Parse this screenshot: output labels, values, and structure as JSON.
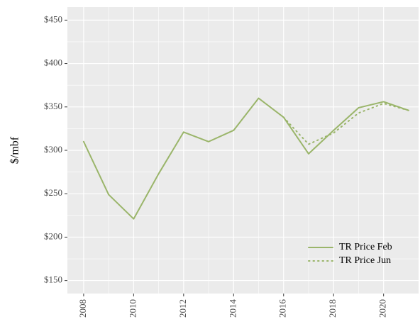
{
  "chart_data": {
    "type": "line",
    "y_label": "$/mbf",
    "x": [
      2008,
      2009,
      2010,
      2011,
      2012,
      2013,
      2014,
      2015,
      2016,
      2017,
      2018,
      2019,
      2020,
      2021
    ],
    "series": [
      {
        "name": "TR Price Feb",
        "color": "#9ab56a",
        "dash": "solid",
        "values": [
          310,
          249,
          221,
          273,
          321,
          310,
          323,
          360,
          338,
          296,
          323,
          349,
          356,
          346
        ]
      },
      {
        "name": "TR Price Jun",
        "color": "#9ab56a",
        "dash": "dotted",
        "values": [
          null,
          null,
          null,
          null,
          null,
          null,
          null,
          null,
          338,
          307,
          320,
          343,
          354,
          346
        ]
      }
    ],
    "xlim": [
      2007.35,
      2021.4
    ],
    "xticks": [
      2008,
      2010,
      2012,
      2014,
      2016,
      2018,
      2020
    ],
    "ylim": [
      135,
      465
    ],
    "yticks": [
      {
        "value": 150,
        "label": "$150"
      },
      {
        "value": 200,
        "label": "$200"
      },
      {
        "value": 250,
        "label": "$250"
      },
      {
        "value": 300,
        "label": "$300"
      },
      {
        "value": 350,
        "label": "$350"
      },
      {
        "value": 400,
        "label": "$400"
      },
      {
        "value": 450,
        "label": "$450"
      }
    ],
    "grid": true,
    "legend": "bottom-right"
  }
}
